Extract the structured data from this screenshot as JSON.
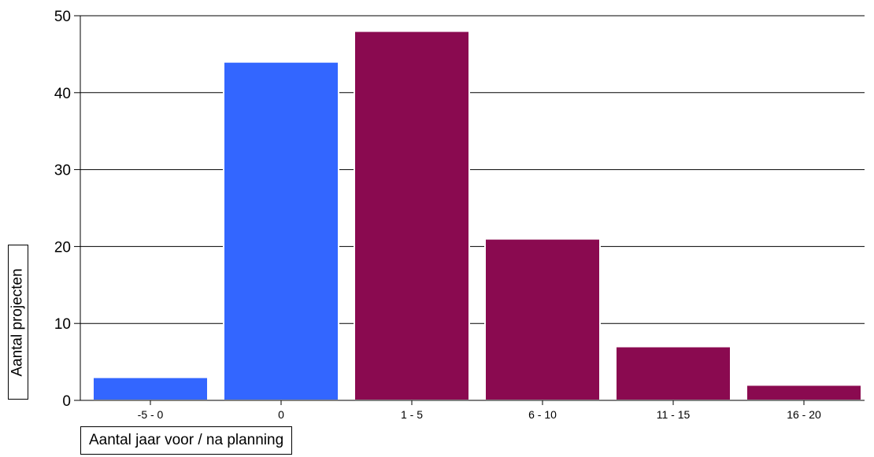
{
  "chart_data": {
    "type": "bar",
    "categories": [
      "-5 - 0",
      "0",
      "1 - 5",
      "6 - 10",
      "11 - 15",
      "16 - 20"
    ],
    "values": [
      3,
      44,
      48,
      21,
      7,
      2
    ],
    "bar_colors": [
      "#3366ff",
      "#3366ff",
      "#8a0a50",
      "#8a0a50",
      "#8a0a50",
      "#8a0a50"
    ],
    "title": "",
    "xlabel": "Aantal jaar voor / na planning",
    "ylabel": "Aantal projecten",
    "ylim": [
      0,
      50
    ],
    "yticks": [
      0,
      10,
      20,
      30,
      40,
      50
    ],
    "grid": "horizontal"
  }
}
